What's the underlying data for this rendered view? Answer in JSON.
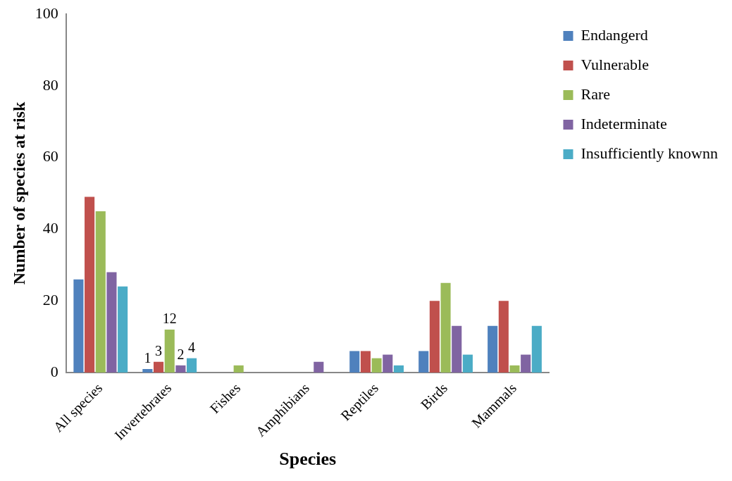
{
  "chart_data": {
    "type": "bar",
    "xlabel": "Species",
    "ylabel": "Number of species at risk",
    "categories": [
      "All species",
      "Invertebrates",
      "Fishes",
      "Amphibians",
      "Reptiles",
      "Birds",
      "Mammals"
    ],
    "series": [
      {
        "name": "Endangerd",
        "color": "#4f81bd",
        "values": [
          26,
          1,
          0,
          0,
          6,
          6,
          13
        ],
        "value_labels": [
          null,
          "1",
          null,
          null,
          null,
          null,
          null
        ]
      },
      {
        "name": "Vulnerable",
        "color": "#c0504d",
        "values": [
          49,
          3,
          0,
          0,
          6,
          20,
          20
        ],
        "value_labels": [
          null,
          "3",
          null,
          null,
          null,
          null,
          null
        ]
      },
      {
        "name": "Rare",
        "color": "#9bbb59",
        "values": [
          45,
          12,
          2,
          0,
          4,
          25,
          2
        ],
        "value_labels": [
          null,
          "12",
          null,
          null,
          null,
          null,
          null
        ]
      },
      {
        "name": "Indeterminate",
        "color": "#8064a2",
        "values": [
          28,
          2,
          0,
          3,
          5,
          13,
          5
        ],
        "value_labels": [
          null,
          "2",
          null,
          null,
          null,
          null,
          null
        ]
      },
      {
        "name": "Insufficiently knownn",
        "color": "#4bacc6",
        "values": [
          24,
          4,
          0,
          0,
          2,
          5,
          13
        ],
        "value_labels": [
          null,
          "4",
          null,
          null,
          null,
          null,
          null
        ]
      }
    ],
    "ylim": [
      0,
      100
    ],
    "yticks": [
      0,
      20,
      40,
      60,
      80,
      100
    ],
    "grid": false,
    "legend": "top right"
  }
}
